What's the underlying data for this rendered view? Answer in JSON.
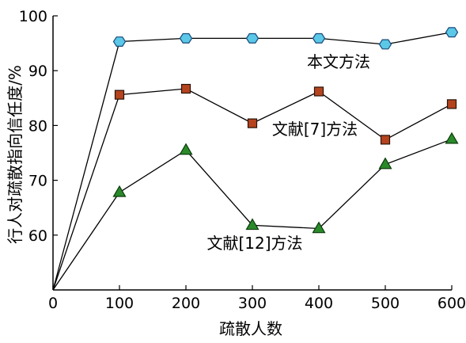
{
  "chart_data": {
    "type": "line",
    "title": "",
    "xlabel": "疏散人数",
    "ylabel": "行人对疏散指向信任度/%",
    "x": [
      0,
      100,
      200,
      300,
      400,
      500,
      600
    ],
    "xlim": [
      0,
      600
    ],
    "ylim": [
      50,
      100
    ],
    "x_ticks": [
      "0",
      "100",
      "200",
      "300",
      "400",
      "500",
      "600"
    ],
    "y_ticks": [
      "60",
      "70",
      "80",
      "90",
      "100"
    ],
    "grid": false,
    "series": [
      {
        "name": "本文方法",
        "values": [
          50,
          95.3,
          95.9,
          95.9,
          95.9,
          94.8,
          97.0
        ],
        "marker": "hexagon",
        "color": "#5bc8e8"
      },
      {
        "name": "文献[7]方法",
        "values": [
          50,
          85.6,
          86.7,
          80.4,
          86.2,
          77.4,
          83.9
        ],
        "marker": "square",
        "color": "#b5441e"
      },
      {
        "name": "文献[12]方法",
        "values": [
          50,
          67.8,
          75.5,
          61.8,
          61.2,
          72.9,
          77.5
        ],
        "marker": "triangle",
        "color": "#2a8a2a"
      }
    ]
  }
}
